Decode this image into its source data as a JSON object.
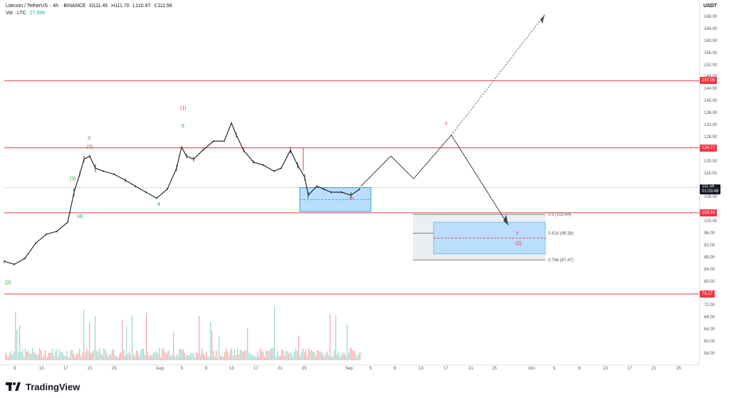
{
  "header": {
    "symbol": "Litecoin / TetherUS",
    "interval": "4h",
    "exchange": "BINANCE",
    "open": "O111.45",
    "high": "H111.70",
    "low": "L110.97",
    "close": "C111.56",
    "vol_label": "Vol · LTC",
    "vol_value": "27.05K"
  },
  "price_axis": {
    "currency": "USDT",
    "ticks": [
      "168.00",
      "164.00",
      "160.00",
      "156.00",
      "152.00",
      "148.00",
      "144.00",
      "140.00",
      "136.00",
      "132.00",
      "128.00",
      "120.00",
      "116.00",
      "108.00",
      "100.00",
      "96.00",
      "92.00",
      "88.00",
      "84.00",
      "80.00",
      "72.00",
      "68.00",
      "64.00",
      "60.00",
      "56.00"
    ],
    "badges": [
      {
        "label": "147.06",
        "price": 147.06
      },
      {
        "label": "124.77",
        "price": 124.77
      },
      {
        "label": "103.16",
        "price": 103.16
      },
      {
        "label": "76.17",
        "price": 76.17
      }
    ],
    "current_price": "111.56",
    "countdown": "01:03:48"
  },
  "time_axis": {
    "ticks": [
      "9",
      "13",
      "17",
      "21",
      "25",
      "Aug",
      "5",
      "9",
      "13",
      "17",
      "21",
      "25",
      "Sep",
      "5",
      "9",
      "13",
      "17",
      "21",
      "25",
      "Oct",
      "5",
      "9",
      "13",
      "17",
      "21",
      "25"
    ]
  },
  "fib_labels": {
    "f05": "0.5 (102.64)",
    "f0618": "0.618 (96.38)",
    "f0786": "0.786 (87.47)"
  },
  "wave_labels": {
    "w2": "(2)",
    "w3": "(3)",
    "w4": "(4)",
    "w5": "(5)",
    "w3plain": "3",
    "w4plain": "4",
    "w5plain": "5",
    "w1red": "(1)",
    "wW": "w",
    "wX": "x",
    "wY": "y",
    "w2red": "(2)"
  },
  "footer": {
    "brand": "TradingView"
  },
  "colors": {
    "red": "#f23645",
    "green": "#26a69a",
    "wave_green": "#2e9e3a",
    "blue_zone": "#bbdefb",
    "grey_zone": "#eceff1"
  }
}
